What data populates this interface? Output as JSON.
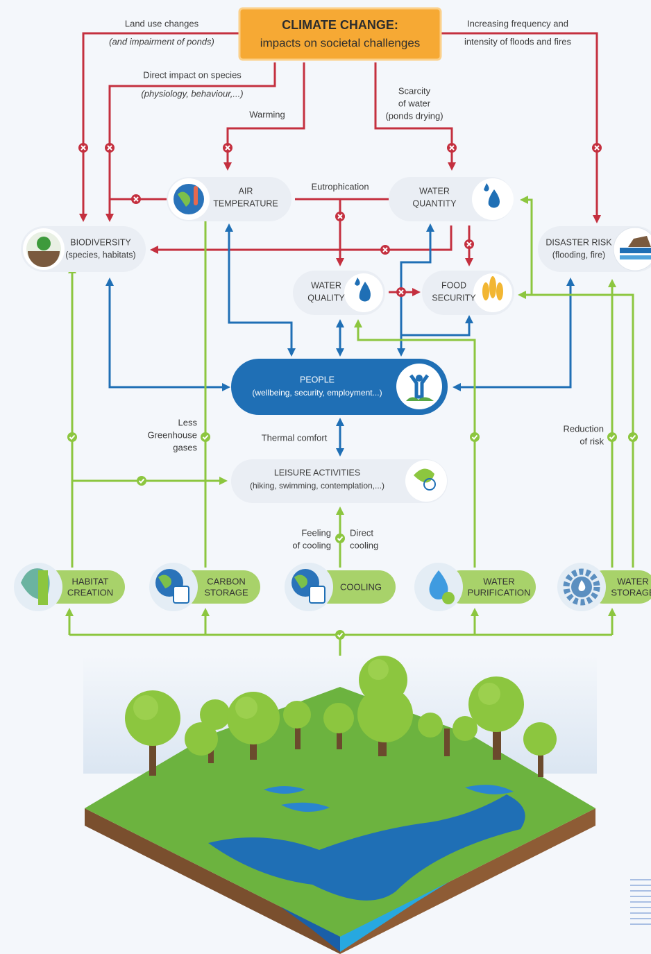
{
  "title": {
    "lines": [
      "CLIMATE CHANGE:",
      "impacts on societal challenges"
    ]
  },
  "impacts": [
    {
      "lines": [
        "Land use changes",
        "(and impairment of ponds)"
      ]
    },
    {
      "lines": [
        "Increasing frequency and",
        "intensity of floods and fires"
      ]
    },
    {
      "lines": [
        "Direct impact on species",
        "(physiology, behaviour,...)"
      ]
    },
    {
      "lines": [
        "Warming"
      ]
    },
    {
      "lines": [
        "Scarcity",
        "of water",
        "(ponds drying)"
      ]
    },
    {
      "lines": [
        "Eutrophication"
      ]
    }
  ],
  "challenges": [
    {
      "lines": [
        "BIODIVERSITY",
        "(species, habitats)"
      ]
    },
    {
      "lines": [
        "AIR",
        "TEMPERATURE"
      ]
    },
    {
      "lines": [
        "WATER",
        "QUANTITY"
      ]
    },
    {
      "lines": [
        "DISASTER RISK",
        "(flooding, fire)"
      ]
    },
    {
      "lines": [
        "WATER",
        "QUALITY"
      ]
    },
    {
      "lines": [
        "FOOD",
        "SECURITY"
      ]
    },
    {
      "lines": [
        "PEOPLE",
        "(wellbeing, security, employment...)"
      ]
    },
    {
      "lines": [
        "LEISURE ACTIVITIES",
        "(hiking, swimming, contemplation,...)"
      ]
    }
  ],
  "benefits": [
    {
      "lines": [
        "Less",
        "Greenhouse",
        "gases"
      ]
    },
    {
      "lines": [
        "Thermal comfort"
      ]
    },
    {
      "lines": [
        "Reduction",
        "of risk"
      ]
    },
    {
      "lines": [
        "Feeling",
        "of cooling"
      ]
    },
    {
      "lines": [
        "Direct",
        "cooling"
      ]
    }
  ],
  "services": [
    {
      "lines": [
        "HABITAT",
        "CREATION"
      ]
    },
    {
      "lines": [
        "CARBON",
        "STORAGE"
      ]
    },
    {
      "lines": [
        "COOLING"
      ]
    },
    {
      "lines": [
        "WATER",
        "PURIFICATION"
      ]
    },
    {
      "lines": [
        "WATER",
        "STORAGE"
      ]
    }
  ]
}
